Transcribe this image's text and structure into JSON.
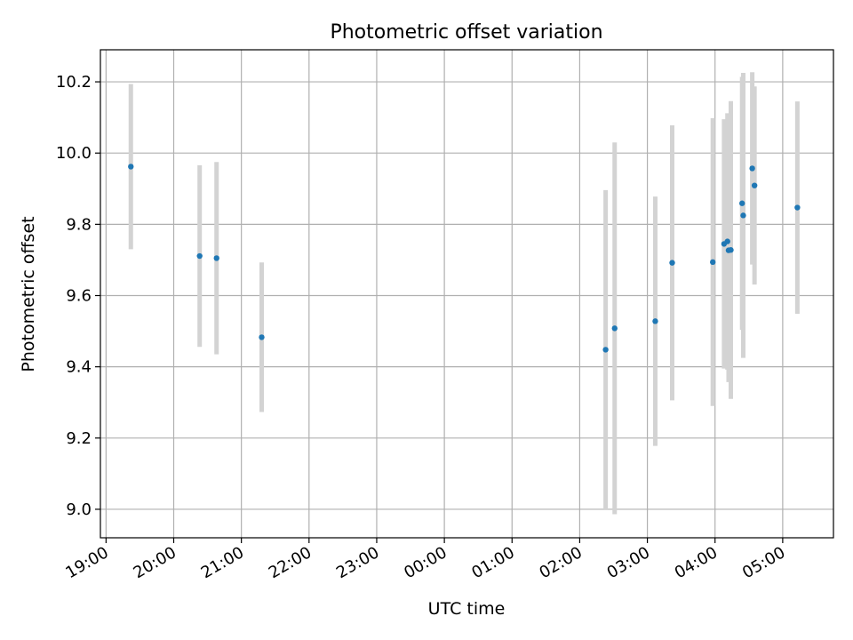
{
  "chart_data": {
    "type": "scatter",
    "title": "Photometric offset variation",
    "xlabel": "UTC time",
    "ylabel": "Photometric offset",
    "x_tick_labels": [
      "19:00",
      "20:00",
      "21:00",
      "22:00",
      "23:00",
      "00:00",
      "01:00",
      "02:00",
      "03:00",
      "04:00",
      "05:00"
    ],
    "y_tick_labels": [
      "9.0",
      "9.2",
      "9.4",
      "9.6",
      "9.8",
      "10.0",
      "10.2"
    ],
    "y_ticks": [
      9.0,
      9.2,
      9.4,
      9.6,
      9.8,
      10.0,
      10.2
    ],
    "xlim": [
      "18:55",
      "05:45"
    ],
    "ylim": [
      8.92,
      10.29
    ],
    "grid": true,
    "marker_color": "#1f77b4",
    "errorbar_color": "#d3d3d3",
    "points": [
      {
        "time": "19:22",
        "y": 9.962,
        "yerr": 0.232
      },
      {
        "time": "20:23",
        "y": 9.711,
        "yerr": 0.255
      },
      {
        "time": "20:38",
        "y": 9.705,
        "yerr": 0.27
      },
      {
        "time": "21:18",
        "y": 9.483,
        "yerr": 0.21
      },
      {
        "time": "02:23",
        "y": 9.448,
        "yerr": 0.448
      },
      {
        "time": "02:31",
        "y": 9.508,
        "yerr": 0.522
      },
      {
        "time": "03:07",
        "y": 9.528,
        "yerr": 0.35
      },
      {
        "time": "03:22",
        "y": 9.692,
        "yerr": 0.386
      },
      {
        "time": "03:58",
        "y": 9.694,
        "yerr": 0.404
      },
      {
        "time": "04:08",
        "y": 9.745,
        "yerr": 0.35
      },
      {
        "time": "04:11",
        "y": 9.752,
        "yerr": 0.36
      },
      {
        "time": "04:12",
        "y": 9.727,
        "yerr": 0.37
      },
      {
        "time": "04:14",
        "y": 9.728,
        "yerr": 0.418
      },
      {
        "time": "04:24",
        "y": 9.859,
        "yerr": 0.355
      },
      {
        "time": "04:25",
        "y": 9.825,
        "yerr": 0.4
      },
      {
        "time": "04:33",
        "y": 9.957,
        "yerr": 0.27
      },
      {
        "time": "04:35",
        "y": 9.909,
        "yerr": 0.278
      },
      {
        "time": "05:13",
        "y": 9.847,
        "yerr": 0.298
      }
    ]
  }
}
